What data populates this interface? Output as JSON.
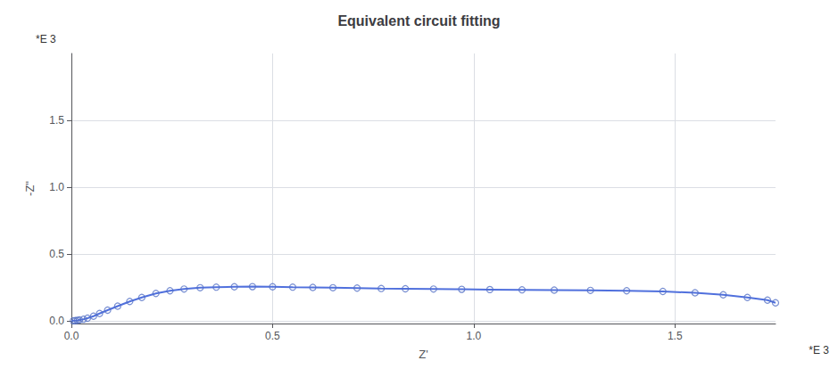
{
  "chart_data": {
    "type": "scatter",
    "title": "Equivalent circuit fitting",
    "xlabel": "Z'",
    "ylabel": "-Z\"",
    "annotations": [
      "*E 3",
      "*E 3"
    ],
    "xlim": [
      0.0,
      1.75
    ],
    "ylim": [
      -0.02,
      2.0
    ],
    "xticks": [
      {
        "value": 0.0,
        "label": "0.0"
      },
      0.5,
      {
        "value": 1.0,
        "label": "1.0"
      },
      1.5
    ],
    "yticks": [
      {
        "value": 0.0,
        "label": "0.0"
      },
      0.5,
      {
        "value": 1.0,
        "label": "1.0"
      },
      1.5
    ],
    "grid": true,
    "series": [
      {
        "type": "line",
        "line_style": "solid",
        "x": [
          0.0,
          0.005,
          0.01,
          0.015,
          0.02,
          0.03,
          0.04,
          0.055,
          0.07,
          0.09,
          0.115,
          0.145,
          0.175,
          0.21,
          0.245,
          0.28,
          0.32,
          0.36,
          0.405,
          0.45,
          0.5,
          0.55,
          0.6,
          0.65,
          0.71,
          0.77,
          0.83,
          0.9,
          0.97,
          1.04,
          1.12,
          1.2,
          1.29,
          1.38,
          1.47,
          1.55,
          1.62,
          1.68,
          1.73,
          1.75
        ],
        "values": [
          0.0,
          0.001,
          0.002,
          0.004,
          0.007,
          0.012,
          0.02,
          0.035,
          0.055,
          0.08,
          0.11,
          0.145,
          0.175,
          0.205,
          0.225,
          0.238,
          0.248,
          0.252,
          0.255,
          0.256,
          0.255,
          0.252,
          0.25,
          0.248,
          0.245,
          0.242,
          0.24,
          0.238,
          0.236,
          0.234,
          0.232,
          0.23,
          0.228,
          0.225,
          0.22,
          0.21,
          0.195,
          0.175,
          0.155,
          0.135
        ]
      },
      {
        "type": "scatter",
        "marker": "open circle",
        "x": [
          0.005,
          0.01,
          0.015,
          0.02,
          0.03,
          0.04,
          0.055,
          0.07,
          0.09,
          0.115,
          0.145,
          0.175,
          0.21,
          0.245,
          0.28,
          0.32,
          0.36,
          0.405,
          0.45,
          0.5,
          0.55,
          0.6,
          0.65,
          0.71,
          0.77,
          0.83,
          0.9,
          0.97,
          1.04,
          1.12,
          1.2,
          1.29,
          1.38,
          1.47,
          1.55,
          1.62,
          1.68,
          1.73,
          1.75
        ],
        "values": [
          0.001,
          0.002,
          0.004,
          0.007,
          0.012,
          0.02,
          0.035,
          0.055,
          0.08,
          0.11,
          0.145,
          0.175,
          0.205,
          0.225,
          0.238,
          0.248,
          0.252,
          0.255,
          0.256,
          0.255,
          0.252,
          0.25,
          0.248,
          0.245,
          0.242,
          0.24,
          0.238,
          0.236,
          0.234,
          0.232,
          0.23,
          0.228,
          0.225,
          0.22,
          0.21,
          0.195,
          0.175,
          0.155,
          0.135
        ]
      }
    ]
  }
}
